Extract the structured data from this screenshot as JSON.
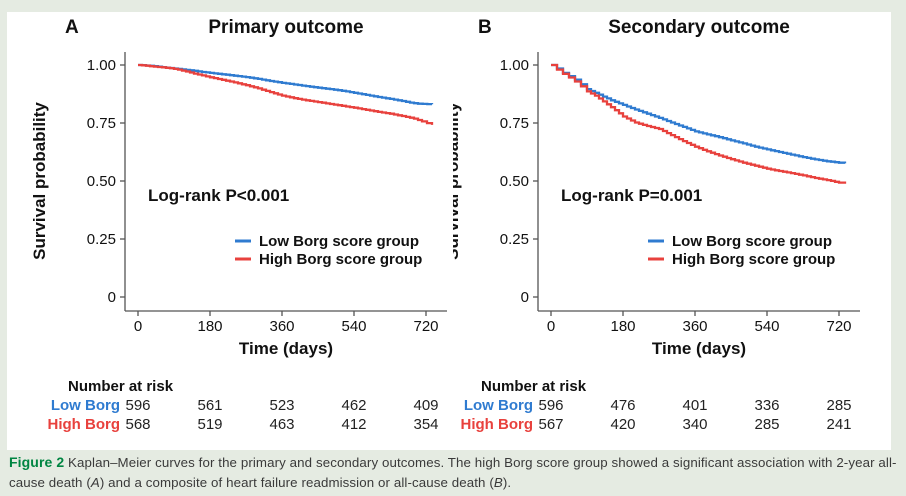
{
  "figure": {
    "background_color": "#e5ebe2",
    "panel_background": "#ffffff",
    "caption": {
      "parts": [
        {
          "text": "Figure 2",
          "style": "label"
        },
        {
          "text": " Kaplan–Meier curves for the primary and secondary outcomes. The high Borg score group showed a significant association with 2-year all-cause death (",
          "style": "plain"
        },
        {
          "text": "A",
          "style": "italic"
        },
        {
          "text": ") and a composite of heart failure readmission or all-cause death (",
          "style": "plain"
        },
        {
          "text": "B",
          "style": "italic"
        },
        {
          "text": ").",
          "style": "plain"
        }
      ],
      "label_color": "#008542"
    }
  },
  "chart_data": [
    {
      "type": "line",
      "panel_label": "A",
      "title": "Primary outcome",
      "xlabel": "Time (days)",
      "ylabel": "Survival probability",
      "annotation": "Log-rank P<0.001",
      "x_ticks": [
        0,
        180,
        360,
        540,
        720
      ],
      "y_ticks": [
        "1.00",
        "0.75",
        "0.50",
        "0.25",
        "0"
      ],
      "y_tick_values": [
        1.0,
        0.75,
        0.5,
        0.25,
        0
      ],
      "xlim": [
        0,
        735
      ],
      "ylim": [
        0,
        1.0
      ],
      "grid": false,
      "legend_position": "lower-right-inside",
      "legend": [
        {
          "name": "Low Borg score group",
          "color": "#2f7bd0"
        },
        {
          "name": "High Borg score group",
          "color": "#e8413d"
        }
      ],
      "series": [
        {
          "name": "Low Borg score group",
          "color": "#2f7bd0",
          "points": [
            [
              0,
              1
            ],
            [
              20,
              0.998
            ],
            [
              40,
              0.995
            ],
            [
              60,
              0.991
            ],
            [
              80,
              0.987
            ],
            [
              100,
              0.983
            ],
            [
              120,
              0.979
            ],
            [
              140,
              0.975
            ],
            [
              160,
              0.97
            ],
            [
              180,
              0.966
            ],
            [
              210,
              0.96
            ],
            [
              240,
              0.954
            ],
            [
              270,
              0.948
            ],
            [
              300,
              0.94
            ],
            [
              330,
              0.931
            ],
            [
              360,
              0.923
            ],
            [
              390,
              0.916
            ],
            [
              420,
              0.909
            ],
            [
              450,
              0.902
            ],
            [
              480,
              0.896
            ],
            [
              510,
              0.889
            ],
            [
              540,
              0.88
            ],
            [
              570,
              0.871
            ],
            [
              600,
              0.862
            ],
            [
              630,
              0.854
            ],
            [
              660,
              0.845
            ],
            [
              680,
              0.838
            ],
            [
              700,
              0.833
            ],
            [
              735,
              0.831
            ]
          ]
        },
        {
          "name": "High Borg score group",
          "color": "#e8413d",
          "points": [
            [
              0,
              1
            ],
            [
              20,
              0.997
            ],
            [
              40,
              0.993
            ],
            [
              60,
              0.99
            ],
            [
              80,
              0.986
            ],
            [
              100,
              0.98
            ],
            [
              120,
              0.972
            ],
            [
              140,
              0.963
            ],
            [
              160,
              0.955
            ],
            [
              180,
              0.947
            ],
            [
              210,
              0.936
            ],
            [
              240,
              0.925
            ],
            [
              270,
              0.913
            ],
            [
              300,
              0.899
            ],
            [
              330,
              0.883
            ],
            [
              360,
              0.868
            ],
            [
              390,
              0.857
            ],
            [
              420,
              0.848
            ],
            [
              450,
              0.84
            ],
            [
              480,
              0.832
            ],
            [
              510,
              0.824
            ],
            [
              540,
              0.816
            ],
            [
              570,
              0.807
            ],
            [
              600,
              0.798
            ],
            [
              630,
              0.79
            ],
            [
              660,
              0.78
            ],
            [
              690,
              0.769
            ],
            [
              710,
              0.757
            ],
            [
              735,
              0.742
            ]
          ]
        }
      ],
      "risk_table": {
        "header": "Number at risk",
        "rows": [
          {
            "label": "Low Borg",
            "color": "#2f7bd0",
            "values": [
              "596",
              "561",
              "523",
              "462",
              "409"
            ]
          },
          {
            "label": "High Borg",
            "color": "#e8413d",
            "values": [
              "568",
              "519",
              "463",
              "412",
              "354"
            ]
          }
        ]
      }
    },
    {
      "type": "line",
      "panel_label": "B",
      "title": "Secondary outcome",
      "xlabel": "Time (days)",
      "ylabel": "Survival probability",
      "annotation": "Log-rank P=0.001",
      "x_ticks": [
        0,
        180,
        360,
        540,
        720
      ],
      "y_ticks": [
        "1.00",
        "0.75",
        "0.50",
        "0.25",
        "0"
      ],
      "y_tick_values": [
        1.0,
        0.75,
        0.5,
        0.25,
        0
      ],
      "xlim": [
        0,
        735
      ],
      "ylim": [
        0,
        1.0
      ],
      "grid": false,
      "legend_position": "lower-right-inside",
      "legend": [
        {
          "name": "Low Borg score group",
          "color": "#2f7bd0"
        },
        {
          "name": "High Borg score group",
          "color": "#e8413d"
        }
      ],
      "series": [
        {
          "name": "Low Borg score group",
          "color": "#2f7bd0",
          "points": [
            [
              0,
              1
            ],
            [
              15,
              0.985
            ],
            [
              30,
              0.966
            ],
            [
              45,
              0.952
            ],
            [
              60,
              0.937
            ],
            [
              75,
              0.917
            ],
            [
              90,
              0.896
            ],
            [
              110,
              0.88
            ],
            [
              130,
              0.864
            ],
            [
              150,
              0.848
            ],
            [
              180,
              0.828
            ],
            [
              210,
              0.808
            ],
            [
              240,
              0.79
            ],
            [
              270,
              0.772
            ],
            [
              300,
              0.752
            ],
            [
              330,
              0.733
            ],
            [
              360,
              0.714
            ],
            [
              390,
              0.701
            ],
            [
              420,
              0.689
            ],
            [
              450,
              0.675
            ],
            [
              480,
              0.662
            ],
            [
              510,
              0.648
            ],
            [
              540,
              0.636
            ],
            [
              570,
              0.625
            ],
            [
              600,
              0.614
            ],
            [
              630,
              0.603
            ],
            [
              660,
              0.593
            ],
            [
              690,
              0.585
            ],
            [
              720,
              0.579
            ],
            [
              735,
              0.576
            ]
          ]
        },
        {
          "name": "High Borg score group",
          "color": "#e8413d",
          "points": [
            [
              0,
              1
            ],
            [
              15,
              0.98
            ],
            [
              30,
              0.962
            ],
            [
              45,
              0.946
            ],
            [
              60,
              0.929
            ],
            [
              75,
              0.908
            ],
            [
              90,
              0.886
            ],
            [
              110,
              0.868
            ],
            [
              130,
              0.843
            ],
            [
              150,
              0.818
            ],
            [
              170,
              0.792
            ],
            [
              180,
              0.778
            ],
            [
              210,
              0.752
            ],
            [
              240,
              0.737
            ],
            [
              270,
              0.724
            ],
            [
              300,
              0.698
            ],
            [
              330,
              0.672
            ],
            [
              360,
              0.648
            ],
            [
              390,
              0.628
            ],
            [
              420,
              0.61
            ],
            [
              450,
              0.594
            ],
            [
              480,
              0.579
            ],
            [
              510,
              0.566
            ],
            [
              540,
              0.553
            ],
            [
              570,
              0.543
            ],
            [
              600,
              0.534
            ],
            [
              630,
              0.524
            ],
            [
              660,
              0.513
            ],
            [
              690,
              0.504
            ],
            [
              720,
              0.493
            ],
            [
              735,
              0.488
            ]
          ]
        }
      ],
      "risk_table": {
        "header": "Number at risk",
        "rows": [
          {
            "label": "Low Borg",
            "color": "#2f7bd0",
            "values": [
              "596",
              "476",
              "401",
              "336",
              "285"
            ]
          },
          {
            "label": "High Borg",
            "color": "#e8413d",
            "values": [
              "567",
              "420",
              "340",
              "285",
              "241"
            ]
          }
        ]
      }
    }
  ]
}
